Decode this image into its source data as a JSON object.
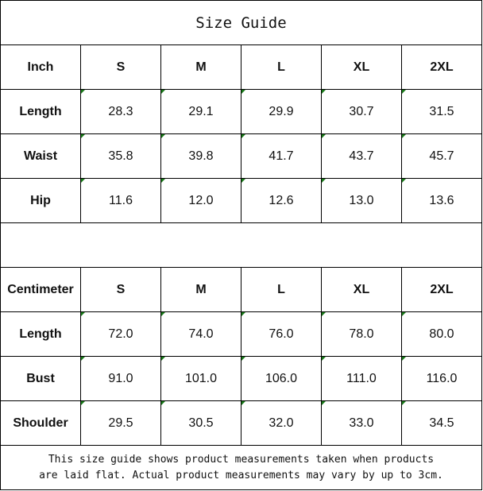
{
  "title": "Size Guide",
  "inch": {
    "header": [
      "Inch",
      "S",
      "M",
      "L",
      "XL",
      "2XL"
    ],
    "rows": [
      {
        "label": "Length",
        "values": [
          "28.3",
          "29.1",
          "29.9",
          "30.7",
          "31.5"
        ]
      },
      {
        "label": "Waist",
        "values": [
          "35.8",
          "39.8",
          "41.7",
          "43.7",
          "45.7"
        ]
      },
      {
        "label": "Hip",
        "values": [
          "11.6",
          "12.0",
          "12.6",
          "13.0",
          "13.6"
        ]
      }
    ]
  },
  "cm": {
    "header": [
      "Centimeter",
      "S",
      "M",
      "L",
      "XL",
      "2XL"
    ],
    "rows": [
      {
        "label": "Length",
        "values": [
          "72.0",
          "74.0",
          "76.0",
          "78.0",
          "80.0"
        ]
      },
      {
        "label": "Bust",
        "values": [
          "91.0",
          "101.0",
          "106.0",
          "111.0",
          "116.0"
        ]
      },
      {
        "label": "Shoulder",
        "values": [
          "29.5",
          "30.5",
          "32.0",
          "33.0",
          "34.5"
        ]
      }
    ]
  },
  "note_line1": "This size guide shows product measurements taken when products",
  "note_line2": "are laid flat. Actual product measurements may vary by up to 3cm.",
  "colors": {
    "corner_marker": "#1a7a1a",
    "border": "#000000"
  }
}
